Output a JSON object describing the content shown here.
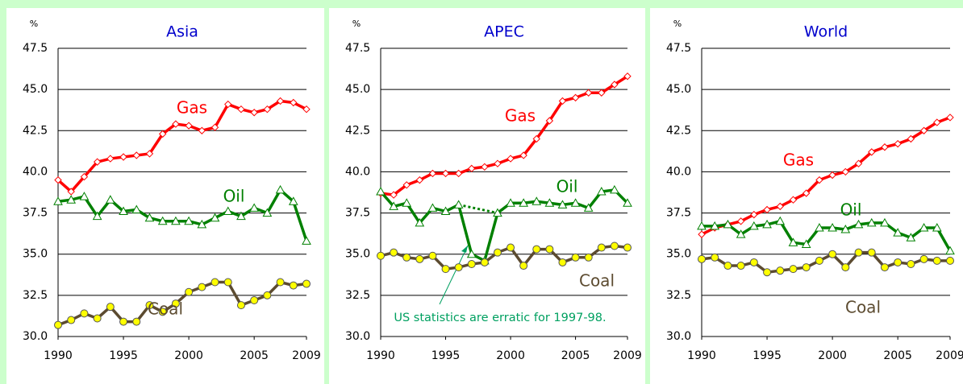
{
  "chart_data": [
    {
      "type": "line",
      "title": "Asia",
      "y_label": "%",
      "x": [
        1990,
        1991,
        1992,
        1993,
        1994,
        1995,
        1996,
        1997,
        1998,
        1999,
        2000,
        2001,
        2002,
        2003,
        2004,
        2005,
        2006,
        2007,
        2008,
        2009
      ],
      "xlim": [
        1990,
        2009
      ],
      "xticks": [
        1990,
        1995,
        2000,
        2005,
        2009
      ],
      "ylim": [
        30,
        47.5
      ],
      "yticks": [
        {
          "value": 30,
          "label": "30.0"
        },
        {
          "value": 32.5,
          "label": "32.5"
        },
        {
          "value": 35,
          "label": "35.0"
        },
        {
          "value": 37.5,
          "label": "37.5"
        },
        {
          "value": 40,
          "label": "40.0"
        },
        {
          "value": 42.5,
          "label": "42.5"
        },
        {
          "value": 45,
          "label": "45.0"
        },
        {
          "value": 47.5,
          "label": "47.5"
        }
      ],
      "grid": true,
      "series": [
        {
          "name": "Gas",
          "color": "#ff0000",
          "marker": "diamond",
          "marker_fill": "#ffffff",
          "values": [
            39.5,
            38.8,
            39.7,
            40.6,
            40.8,
            40.9,
            41.0,
            41.1,
            42.3,
            42.9,
            42.8,
            42.5,
            42.7,
            44.1,
            43.8,
            43.6,
            43.8,
            44.3,
            44.2,
            43.8
          ]
        },
        {
          "name": "Oil",
          "color": "#008000",
          "marker": "triangle",
          "marker_fill": "#ffffff",
          "values": [
            38.2,
            38.3,
            38.5,
            37.3,
            38.3,
            37.6,
            37.7,
            37.2,
            37.0,
            37.0,
            37.0,
            36.8,
            37.2,
            37.6,
            37.3,
            37.8,
            37.5,
            38.9,
            38.2,
            35.8
          ]
        },
        {
          "name": "Coal",
          "color": "#5c4b30",
          "marker": "circle",
          "marker_fill": "#ffff00",
          "values": [
            30.7,
            31.0,
            31.4,
            31.1,
            31.8,
            30.9,
            30.9,
            31.9,
            31.5,
            32.0,
            32.7,
            33.0,
            33.3,
            33.3,
            31.9,
            32.2,
            32.5,
            33.3,
            33.1,
            33.2
          ]
        }
      ]
    },
    {
      "type": "line",
      "title": "APEC",
      "y_label": "%",
      "x": [
        1990,
        1991,
        1992,
        1993,
        1994,
        1995,
        1996,
        1997,
        1998,
        1999,
        2000,
        2001,
        2002,
        2003,
        2004,
        2005,
        2006,
        2007,
        2008,
        2009
      ],
      "xlim": [
        1990,
        2009
      ],
      "xticks": [
        1990,
        1995,
        2000,
        2005,
        2009
      ],
      "ylim": [
        30,
        47.5
      ],
      "yticks": [
        {
          "value": 30,
          "label": "30.0"
        },
        {
          "value": 32.5,
          "label": "32.5"
        },
        {
          "value": 35,
          "label": "35.0"
        },
        {
          "value": 37.5,
          "label": "37.5"
        },
        {
          "value": 40,
          "label": "40.0"
        },
        {
          "value": 42.5,
          "label": "42.5"
        },
        {
          "value": 45,
          "label": "45.0"
        },
        {
          "value": 47.5,
          "label": "47.5"
        }
      ],
      "grid": true,
      "annotation": "US statistics are erratic for 1997-98.",
      "series": [
        {
          "name": "Gas",
          "color": "#ff0000",
          "marker": "diamond",
          "marker_fill": "#ffffff",
          "values": [
            38.7,
            38.6,
            39.2,
            39.5,
            39.9,
            39.9,
            39.9,
            40.2,
            40.3,
            40.5,
            40.8,
            41.0,
            42.0,
            43.1,
            44.3,
            44.5,
            44.8,
            44.8,
            45.3,
            45.8
          ]
        },
        {
          "name": "Oil",
          "color": "#008000",
          "marker": "triangle",
          "marker_fill": "#ffffff",
          "values": [
            38.8,
            37.9,
            38.1,
            36.9,
            37.8,
            37.6,
            38.0,
            35.0,
            34.6,
            37.5,
            38.1,
            38.1,
            38.2,
            38.1,
            38.0,
            38.1,
            37.8,
            38.8,
            38.9,
            38.1
          ]
        },
        {
          "name": "Coal",
          "color": "#5c4b30",
          "marker": "circle",
          "marker_fill": "#ffff00",
          "values": [
            34.9,
            35.1,
            34.8,
            34.7,
            34.9,
            34.1,
            34.2,
            34.4,
            34.5,
            35.1,
            35.4,
            34.3,
            35.3,
            35.3,
            34.5,
            34.8,
            34.8,
            35.4,
            35.5,
            35.4
          ]
        }
      ]
    },
    {
      "type": "line",
      "title": "World",
      "y_label": "%",
      "x": [
        1990,
        1991,
        1992,
        1993,
        1994,
        1995,
        1996,
        1997,
        1998,
        1999,
        2000,
        2001,
        2002,
        2003,
        2004,
        2005,
        2006,
        2007,
        2008,
        2009
      ],
      "xlim": [
        1990,
        2009
      ],
      "xticks": [
        1990,
        1995,
        2000,
        2005,
        2009
      ],
      "ylim": [
        30,
        47.5
      ],
      "yticks": [
        {
          "value": 30,
          "label": "30.0"
        },
        {
          "value": 32.5,
          "label": "32.5"
        },
        {
          "value": 35,
          "label": "35.0"
        },
        {
          "value": 37.5,
          "label": "37.5"
        },
        {
          "value": 40,
          "label": "40.0"
        },
        {
          "value": 42.5,
          "label": "42.5"
        },
        {
          "value": 45,
          "label": "45.0"
        },
        {
          "value": 47.5,
          "label": "47.5"
        }
      ],
      "grid": true,
      "series": [
        {
          "name": "Gas",
          "color": "#ff0000",
          "marker": "diamond",
          "marker_fill": "#ffffff",
          "values": [
            36.2,
            36.6,
            36.8,
            37.0,
            37.4,
            37.7,
            37.9,
            38.3,
            38.7,
            39.5,
            39.8,
            40.0,
            40.5,
            41.2,
            41.5,
            41.7,
            42.0,
            42.5,
            43.0,
            43.3
          ]
        },
        {
          "name": "Oil",
          "color": "#008000",
          "marker": "triangle",
          "marker_fill": "#ffffff",
          "values": [
            36.7,
            36.7,
            36.8,
            36.2,
            36.7,
            36.8,
            37.0,
            35.7,
            35.6,
            36.6,
            36.6,
            36.5,
            36.8,
            36.9,
            36.9,
            36.3,
            36.0,
            36.6,
            36.6,
            35.2
          ]
        },
        {
          "name": "Coal",
          "color": "#5c4b30",
          "marker": "circle",
          "marker_fill": "#ffff00",
          "values": [
            34.7,
            34.8,
            34.3,
            34.3,
            34.5,
            33.9,
            34.0,
            34.1,
            34.2,
            34.6,
            35.0,
            34.2,
            35.1,
            35.1,
            34.2,
            34.5,
            34.4,
            34.7,
            34.6,
            34.6
          ]
        }
      ]
    }
  ]
}
